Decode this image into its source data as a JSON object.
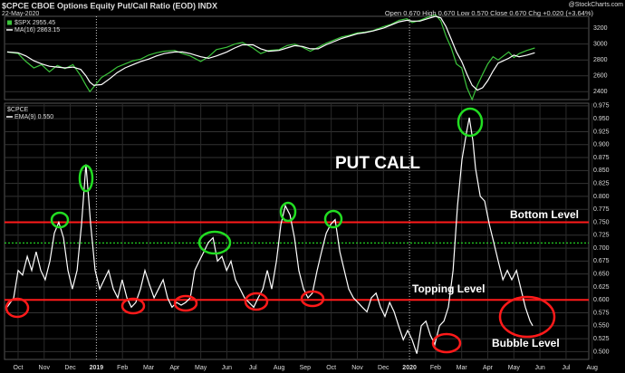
{
  "header": {
    "title": "$CPCE CBOE Options Equity Put/Call Ratio (EOD) INDX",
    "date": "22-May-2020",
    "quote": "Open 0.670 High 0.670 Low 0.570 Close 0.670 Chg +0.020 (+3.64%)",
    "source": "@StockCharts.com"
  },
  "chart_data": [
    {
      "type": "line",
      "ylim": [
        2300,
        3350
      ],
      "yticks": [
        2400,
        2600,
        2800,
        3000,
        3200
      ],
      "xlim": [
        -0.52,
        21.87
      ],
      "grid": true,
      "x": [
        -0.42,
        0,
        0.3,
        0.6,
        0.9,
        1.2,
        1.5,
        1.8,
        2.1,
        2.4,
        2.6,
        2.75,
        2.9,
        3.2,
        3.5,
        3.8,
        4.1,
        4.4,
        4.7,
        5.0,
        5.3,
        5.6,
        6.0,
        6.3,
        6.6,
        7.0,
        7.3,
        7.6,
        8.0,
        8.3,
        8.6,
        9.0,
        9.3,
        9.6,
        10.0,
        10.3,
        10.6,
        10.9,
        11.2,
        11.5,
        11.8,
        12.1,
        12.4,
        12.7,
        13.0,
        13.3,
        13.6,
        14.0,
        14.3,
        14.6,
        14.9,
        15.1,
        15.4,
        15.7,
        16.0,
        16.2,
        16.4,
        16.6,
        16.8,
        17.0,
        17.2,
        17.4,
        17.6,
        17.8,
        18.0,
        18.2,
        18.4,
        18.6,
        18.8,
        19.0,
        19.2,
        19.5,
        19.8
      ],
      "series": [
        {
          "name": "$SPX 2955.45",
          "color": "#3cc43c",
          "values": [
            2900,
            2880,
            2780,
            2700,
            2740,
            2650,
            2730,
            2690,
            2740,
            2600,
            2480,
            2400,
            2460,
            2580,
            2640,
            2710,
            2750,
            2790,
            2810,
            2860,
            2890,
            2910,
            2920,
            2880,
            2850,
            2780,
            2840,
            2930,
            2960,
            3000,
            3020,
            2950,
            2880,
            2920,
            2930,
            2980,
            3000,
            2960,
            2910,
            2960,
            3010,
            3050,
            3090,
            3110,
            3140,
            3150,
            3170,
            3220,
            3250,
            3300,
            3320,
            3270,
            3300,
            3340,
            3370,
            3290,
            3100,
            2950,
            2750,
            2700,
            2450,
            2300,
            2480,
            2620,
            2750,
            2840,
            2800,
            2850,
            2900,
            2830,
            2880,
            2920,
            2950
          ]
        },
        {
          "name": "MA(16) 2863.15",
          "color": "#ffffff",
          "values": [
            2900,
            2890,
            2850,
            2790,
            2750,
            2720,
            2710,
            2700,
            2710,
            2680,
            2600,
            2520,
            2480,
            2490,
            2560,
            2640,
            2700,
            2740,
            2780,
            2810,
            2850,
            2880,
            2900,
            2900,
            2880,
            2840,
            2820,
            2850,
            2900,
            2950,
            2990,
            2990,
            2940,
            2910,
            2920,
            2950,
            2980,
            2970,
            2940,
            2940,
            2990,
            3030,
            3070,
            3100,
            3130,
            3145,
            3165,
            3200,
            3240,
            3280,
            3300,
            3290,
            3290,
            3320,
            3350,
            3330,
            3220,
            3060,
            2900,
            2780,
            2620,
            2480,
            2420,
            2450,
            2540,
            2660,
            2760,
            2790,
            2820,
            2860,
            2840,
            2860,
            2890
          ]
        }
      ]
    },
    {
      "type": "line",
      "label": "$CPCE",
      "ylim": [
        0.485,
        0.98
      ],
      "xlim": [
        -0.52,
        21.87
      ],
      "grid": true,
      "yticks": [
        {
          "value": 0.5,
          "label": "0.500"
        },
        0.525,
        {
          "value": 0.55,
          "label": "0.550"
        },
        0.575,
        {
          "value": 0.6,
          "label": "0.600"
        },
        0.625,
        {
          "value": 0.65,
          "label": "0.650"
        },
        0.675,
        {
          "value": 0.7,
          "label": "0.700"
        },
        0.725,
        {
          "value": 0.75,
          "label": "0.750"
        },
        0.775,
        {
          "value": 0.8,
          "label": "0.800"
        },
        0.825,
        {
          "value": 0.85,
          "label": "0.850"
        },
        0.875,
        {
          "value": 0.9,
          "label": "0.900"
        },
        0.925,
        {
          "value": 0.95,
          "label": "0.950"
        },
        0.975
      ],
      "xticks": [
        {
          "value": 0,
          "label": "Oct"
        },
        {
          "value": 1,
          "label": "Nov"
        },
        {
          "value": 2,
          "label": "Dec"
        },
        {
          "value": 3,
          "label": "2019"
        },
        {
          "value": 4,
          "label": "Feb"
        },
        {
          "value": 5,
          "label": "Mar"
        },
        {
          "value": 6,
          "label": "Apr"
        },
        {
          "value": 7,
          "label": "May"
        },
        {
          "value": 8,
          "label": "Jun"
        },
        {
          "value": 9,
          "label": "Jul"
        },
        {
          "value": 10,
          "label": "Aug"
        },
        {
          "value": 11,
          "label": "Sep"
        },
        {
          "value": 12,
          "label": "Oct"
        },
        {
          "value": 13,
          "label": "Nov"
        },
        {
          "value": 14,
          "label": "Dec"
        },
        {
          "value": 15,
          "label": "2020"
        },
        {
          "value": 16,
          "label": "Feb"
        },
        {
          "value": 17,
          "label": "Mar"
        },
        {
          "value": 18,
          "label": "Apr"
        },
        {
          "value": 19,
          "label": "May"
        },
        {
          "value": 20,
          "label": "Jun"
        },
        {
          "value": 21,
          "label": "Jul"
        },
        {
          "value": 22,
          "label": "Aug"
        }
      ],
      "reference_lines": [
        {
          "value": 0.75,
          "color": "#ff1a1a",
          "style": "solid"
        },
        {
          "value": 0.6,
          "color": "#ff1a1a",
          "style": "solid"
        },
        {
          "value": 0.71,
          "color": "#22cc22",
          "style": "dotted"
        }
      ],
      "annotations": [
        "PUT CALL",
        "Bottom Level",
        "Topping Level",
        "Bubble Level"
      ],
      "x": [
        -0.42,
        -0.17,
        0,
        0.17,
        0.35,
        0.52,
        0.69,
        0.87,
        1.04,
        1.22,
        1.39,
        1.56,
        1.74,
        1.91,
        2.08,
        2.26,
        2.43,
        2.6,
        2.78,
        2.95,
        3.13,
        3.3,
        3.47,
        3.65,
        3.82,
        3.99,
        4.17,
        4.34,
        4.51,
        4.69,
        4.86,
        5.03,
        5.21,
        5.38,
        5.56,
        5.73,
        5.9,
        6.08,
        6.25,
        6.42,
        6.6,
        6.77,
        6.94,
        7.12,
        7.29,
        7.47,
        7.64,
        7.81,
        7.99,
        8.16,
        8.33,
        8.51,
        8.68,
        8.85,
        9.03,
        9.2,
        9.38,
        9.55,
        9.72,
        9.9,
        10.07,
        10.24,
        10.42,
        10.59,
        10.76,
        10.94,
        11.11,
        11.28,
        11.46,
        11.63,
        11.81,
        11.98,
        12.15,
        12.33,
        12.5,
        12.67,
        12.85,
        13.02,
        13.19,
        13.37,
        13.54,
        13.72,
        13.89,
        14.06,
        14.24,
        14.41,
        14.58,
        14.76,
        14.93,
        15.1,
        15.28,
        15.45,
        15.63,
        15.8,
        15.97,
        16.15,
        16.32,
        16.49,
        16.67,
        16.84,
        17.01,
        17.19,
        17.29,
        17.43,
        17.53,
        17.71,
        17.88,
        18.06,
        18.23,
        18.4,
        18.58,
        18.75,
        18.92,
        19.1,
        19.27,
        19.44,
        19.62,
        19.72
      ],
      "series": [
        {
          "name": "EMA(9) 0.550",
          "color": "#ffffff",
          "values": [
            0.586,
            0.604,
            0.657,
            0.648,
            0.684,
            0.657,
            0.693,
            0.657,
            0.639,
            0.675,
            0.729,
            0.75,
            0.72,
            0.657,
            0.621,
            0.657,
            0.746,
            0.862,
            0.746,
            0.657,
            0.621,
            0.639,
            0.657,
            0.621,
            0.604,
            0.639,
            0.604,
            0.586,
            0.595,
            0.621,
            0.657,
            0.63,
            0.604,
            0.621,
            0.639,
            0.604,
            0.586,
            0.595,
            0.59,
            0.595,
            0.604,
            0.657,
            0.675,
            0.693,
            0.711,
            0.72,
            0.675,
            0.684,
            0.657,
            0.675,
            0.639,
            0.621,
            0.604,
            0.595,
            0.586,
            0.604,
            0.621,
            0.657,
            0.621,
            0.675,
            0.746,
            0.782,
            0.764,
            0.72,
            0.657,
            0.621,
            0.604,
            0.613,
            0.657,
            0.693,
            0.729,
            0.746,
            0.755,
            0.693,
            0.657,
            0.621,
            0.604,
            0.595,
            0.586,
            0.577,
            0.604,
            0.613,
            0.586,
            0.568,
            0.595,
            0.577,
            0.55,
            0.523,
            0.541,
            0.523,
            0.496,
            0.55,
            0.559,
            0.532,
            0.514,
            0.55,
            0.559,
            0.586,
            0.657,
            0.782,
            0.871,
            0.925,
            0.952,
            0.907,
            0.854,
            0.8,
            0.791,
            0.746,
            0.711,
            0.675,
            0.639,
            0.657,
            0.639,
            0.657,
            0.621,
            0.586,
            0.559,
            0.55
          ]
        }
      ]
    }
  ]
}
